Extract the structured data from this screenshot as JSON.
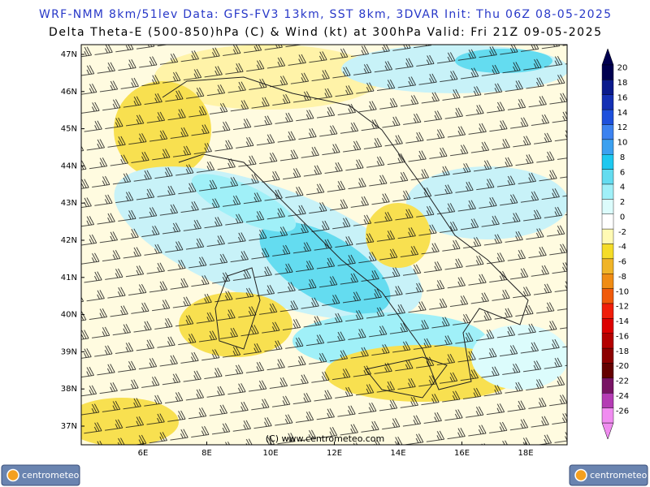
{
  "header": {
    "line1": "WRF-NMM 8km/51lev  Data: GFS-FV3 13km, SST 8km, 3DVAR  Init: Thu 06Z 08-05-2025",
    "line2": "Delta Theta-E (500-850)hPa (C) & Wind (kt) at 300hPa   Valid: Fri 21Z 09-05-2025"
  },
  "map": {
    "lat_labels": [
      "47N",
      "46N",
      "45N",
      "44N",
      "43N",
      "42N",
      "41N",
      "40N",
      "39N",
      "38N",
      "37N"
    ],
    "lon_labels": [
      "6E",
      "8E",
      "10E",
      "12E",
      "14E",
      "16E",
      "18E"
    ],
    "credit": "(C) www.centrometeo.com"
  },
  "colorbar": {
    "ticks": [
      20,
      18,
      16,
      14,
      12,
      10,
      8,
      6,
      4,
      2,
      0,
      -2,
      -4,
      -6,
      -8,
      -10,
      -12,
      -14,
      -16,
      -18,
      -20,
      -22,
      -24,
      -26
    ],
    "colors": [
      "#000050",
      "#0a1a8c",
      "#1430b4",
      "#1e50dc",
      "#3c82f0",
      "#3ca0f0",
      "#1ec8f0",
      "#64dcf0",
      "#a0f0f8",
      "#dcfcfc",
      "#ffffff",
      "#fffab4",
      "#f5dc28",
      "#f0b428",
      "#f08c14",
      "#f05a0a",
      "#f01e0a",
      "#dc0000",
      "#b40000",
      "#8c0000",
      "#640000",
      "#781464",
      "#b43cb4",
      "#f08cf0"
    ]
  },
  "logos": {
    "left": "centrometeo",
    "right": "centrometeo"
  }
}
